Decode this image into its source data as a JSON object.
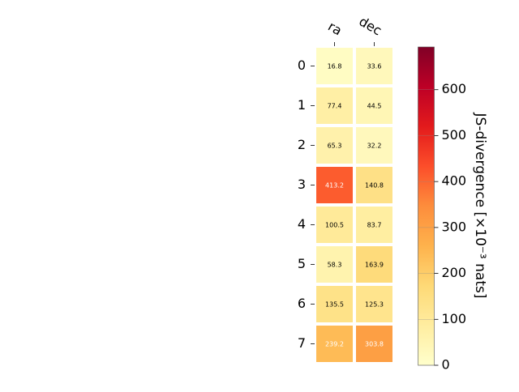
{
  "chart_data": {
    "type": "heatmap",
    "title": "",
    "x_categories": [
      "ra",
      "dec"
    ],
    "y_categories": [
      "0",
      "1",
      "2",
      "3",
      "4",
      "5",
      "6",
      "7"
    ],
    "values": [
      [
        16.8,
        33.6
      ],
      [
        77.4,
        44.5
      ],
      [
        65.3,
        32.2
      ],
      [
        413.2,
        140.8
      ],
      [
        100.5,
        83.7
      ],
      [
        58.3,
        163.9
      ],
      [
        135.5,
        125.3
      ],
      [
        239.2,
        303.8
      ]
    ],
    "colorbar": {
      "label": "JS-divergence [×10⁻³ nats]",
      "range": [
        0,
        693
      ],
      "ticks": [
        "0",
        "100",
        "200",
        "300",
        "400",
        "500",
        "600"
      ],
      "colormap": "YlOrRd"
    },
    "grid": false,
    "legend": "none"
  }
}
